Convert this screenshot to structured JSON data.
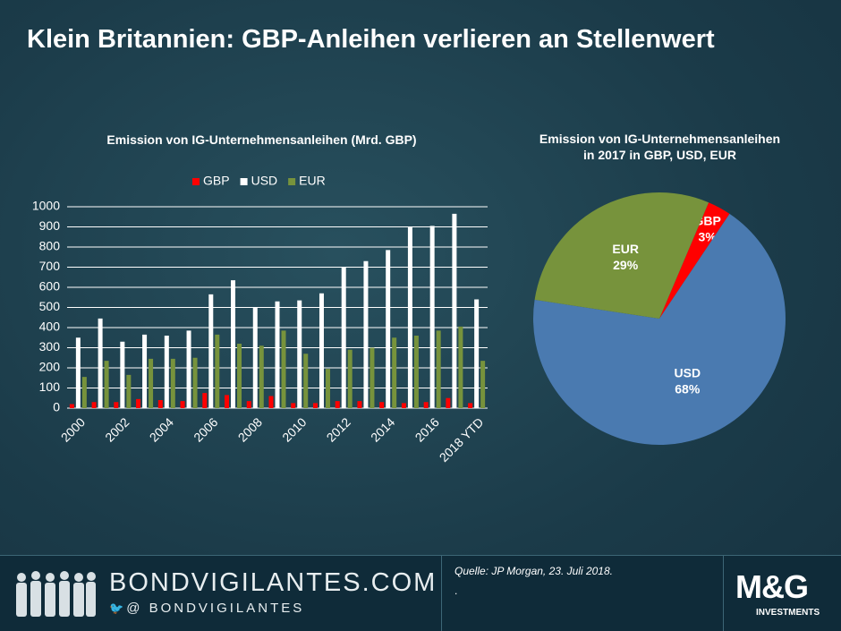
{
  "title": "Klein Britannien: GBP-Anleihen verlieren an Stellenwert",
  "chart_data": [
    {
      "type": "bar",
      "title": "Emission  von IG-Unternehmensanleihen  (Mrd. GBP)",
      "categories": [
        "2000",
        null,
        "2002",
        null,
        "2004",
        null,
        "2006",
        null,
        "2008",
        null,
        "2010",
        null,
        "2012",
        null,
        "2014",
        null,
        "2016",
        null,
        "2018 YTD"
      ],
      "series": [
        {
          "name": "GBP",
          "color": "#ff0000",
          "values": [
            20,
            30,
            30,
            45,
            40,
            35,
            75,
            65,
            35,
            60,
            25,
            25,
            35,
            35,
            30,
            25,
            30,
            50,
            25
          ]
        },
        {
          "name": "USD",
          "color": "#ffffff",
          "values": [
            350,
            445,
            330,
            365,
            360,
            385,
            565,
            635,
            500,
            530,
            535,
            570,
            700,
            730,
            785,
            900,
            905,
            965,
            540
          ]
        },
        {
          "name": "EUR",
          "color": "#77933c",
          "values": [
            155,
            235,
            165,
            245,
            245,
            250,
            365,
            320,
            310,
            385,
            270,
            195,
            290,
            300,
            350,
            360,
            385,
            405,
            235
          ]
        }
      ],
      "ylim": [
        0,
        1000
      ],
      "yticks": [
        0,
        100,
        200,
        300,
        400,
        500,
        600,
        700,
        800,
        900,
        1000
      ],
      "grid": true,
      "legend": "top"
    },
    {
      "type": "pie",
      "title": "Emission von IG-Unternehmensanleihen in 2017 in GBP, USD, EUR",
      "categories": [
        "GBP",
        "USD",
        "EUR"
      ],
      "values": [
        3,
        68,
        29
      ],
      "value_labels": [
        "3%",
        "68%",
        "29%"
      ],
      "colors": [
        "#ff0000",
        "#4a7ab0",
        "#77933c"
      ]
    }
  ],
  "footer": {
    "site": "BONDVIGILANTES.COM",
    "handle": "@ BONDVIGILANTES",
    "source": "Quelle:  JP Morgan,  23. Juli 2018.",
    "note": ".",
    "logo": "M&G",
    "logo_sub": "INVESTMENTS"
  }
}
